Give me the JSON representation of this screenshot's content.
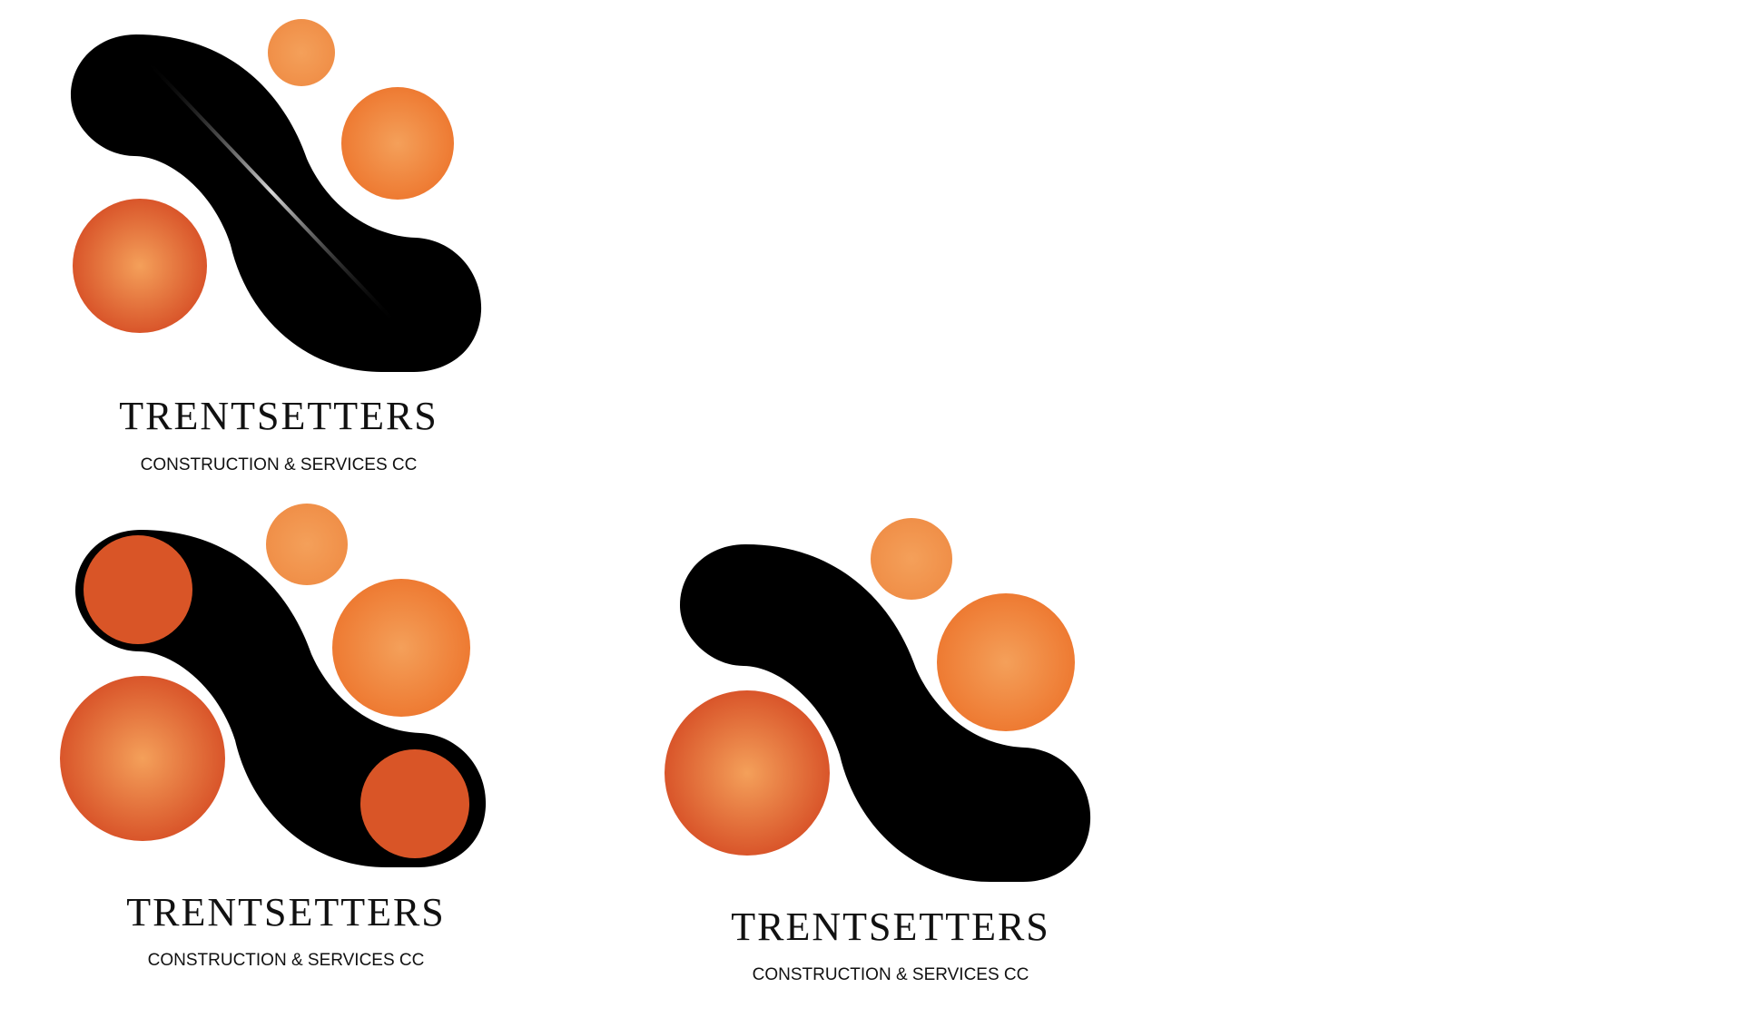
{
  "colors": {
    "background": "#ffffff",
    "black": "#000000",
    "orange_light": "#f4a05a",
    "orange_mid": "#f08338",
    "orange_dark": "#d9552a",
    "solid_orange": "#d95527"
  },
  "logos": [
    {
      "variant": "gloss-stripe",
      "name": "TRENTSETTERS",
      "tagline": "CONSTRUCTION & SERVICES CC"
    },
    {
      "variant": "inset-end-circles",
      "name": "TRENTSETTERS",
      "tagline": "CONSTRUCTION & SERVICES CC"
    },
    {
      "variant": "plain",
      "name": "TRENTSETTERS",
      "tagline": "CONSTRUCTION & SERVICES CC"
    }
  ]
}
